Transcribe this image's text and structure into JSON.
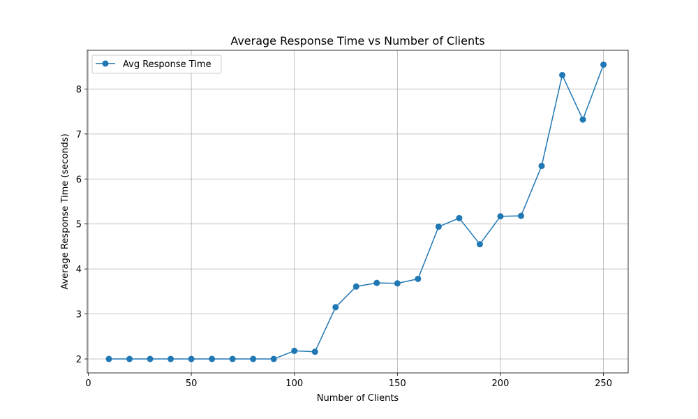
{
  "chart_data": {
    "type": "line",
    "title": "Average Response Time vs Number of Clients",
    "xlabel": "Number of Clients",
    "ylabel": "Average Response Time (seconds)",
    "xlim": [
      -0.5,
      262
    ],
    "ylim": [
      1.69,
      8.86
    ],
    "xticks": [
      0,
      50,
      100,
      150,
      200,
      250
    ],
    "yticks": [
      2,
      3,
      4,
      5,
      6,
      7,
      8
    ],
    "grid": true,
    "legend_position": "top-left",
    "series": [
      {
        "name": "Avg Response Time",
        "color": "#1f77b4",
        "marker": "circle",
        "x": [
          10,
          20,
          30,
          40,
          50,
          60,
          70,
          80,
          90,
          100,
          110,
          120,
          130,
          140,
          150,
          160,
          170,
          180,
          190,
          200,
          210,
          220,
          230,
          240,
          250
        ],
        "y": [
          2.0,
          2.0,
          2.0,
          2.0,
          2.0,
          2.0,
          2.0,
          2.0,
          2.0,
          2.18,
          2.16,
          3.15,
          3.61,
          3.69,
          3.68,
          3.78,
          4.94,
          5.13,
          4.55,
          5.17,
          5.18,
          6.29,
          8.31,
          7.32,
          8.54
        ]
      }
    ]
  }
}
